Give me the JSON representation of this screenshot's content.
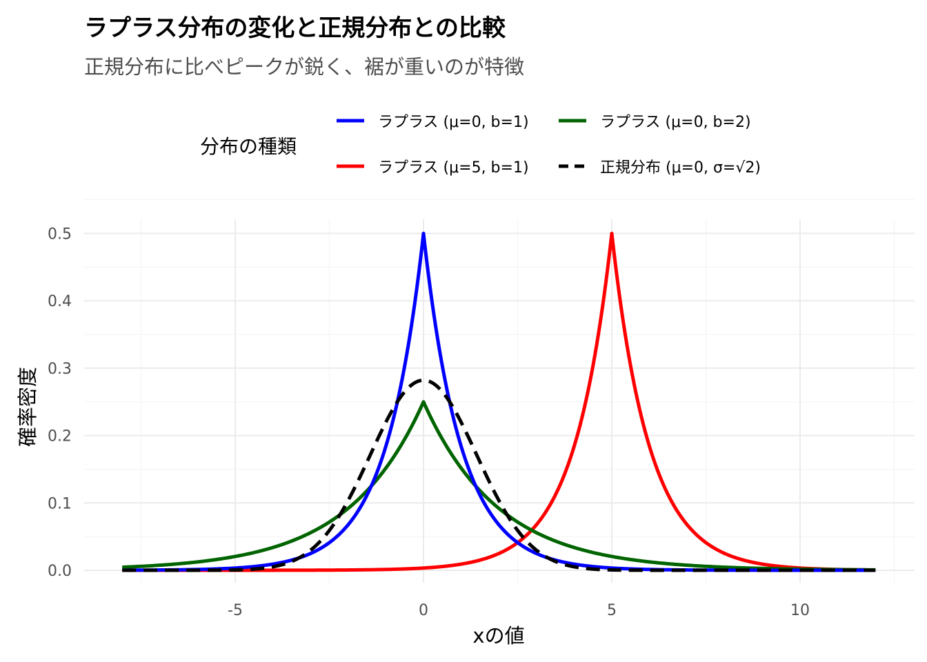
{
  "chart_data": {
    "type": "line",
    "title": "ラプラス分布の変化と正規分布との比較",
    "subtitle": "正規分布に比べピークが鋭く、裾が重いのが特徴",
    "xlabel": "xの値",
    "ylabel": "確率密度",
    "legend_title": "分布の種類",
    "legend_position": "top",
    "grid": true,
    "xlim": [
      -8,
      12
    ],
    "ylim": [
      0,
      0.5
    ],
    "x_ticks": [
      -5,
      0,
      5,
      10
    ],
    "x_tick_labels": [
      "-5",
      "0",
      "5",
      "10"
    ],
    "y_ticks": [
      0.0,
      0.1,
      0.2,
      0.3,
      0.4,
      0.5
    ],
    "y_tick_labels": [
      "0.0",
      "0.1",
      "0.2",
      "0.3",
      "0.4",
      "0.5"
    ],
    "x": [
      -8,
      -7,
      -6,
      -5,
      -4,
      -3,
      -2,
      -1.5,
      -1,
      -0.5,
      0,
      0.5,
      1,
      1.5,
      2,
      3,
      4,
      5,
      6,
      7,
      8,
      9,
      10,
      11,
      12
    ],
    "series": [
      {
        "name": "ラプラス (μ=0, b=1)",
        "color": "#0000ff",
        "dash": "solid",
        "values": [
          0.0002,
          0.0005,
          0.0012,
          0.0034,
          0.0092,
          0.0249,
          0.0677,
          0.1116,
          0.1839,
          0.3033,
          0.5,
          0.3033,
          0.1839,
          0.1116,
          0.0677,
          0.0249,
          0.0092,
          0.0034,
          0.0012,
          0.0005,
          0.0002,
          0.0001,
          0.0,
          0.0,
          0.0
        ]
      },
      {
        "name": "ラプラス (μ=0, b=2)",
        "color": "#006400",
        "dash": "solid",
        "values": [
          0.0046,
          0.0075,
          0.0124,
          0.0205,
          0.0338,
          0.0558,
          0.092,
          0.1181,
          0.1516,
          0.1947,
          0.25,
          0.1947,
          0.1516,
          0.1181,
          0.092,
          0.0558,
          0.0338,
          0.0205,
          0.0124,
          0.0075,
          0.0046,
          0.0028,
          0.0017,
          0.001,
          0.0006
        ]
      },
      {
        "name": "ラプラス (μ=5, b=1)",
        "color": "#ff0000",
        "dash": "solid",
        "values": [
          0.0,
          0.0,
          0.0,
          0.0,
          0.0001,
          0.0002,
          0.0005,
          0.0008,
          0.0012,
          0.002,
          0.0034,
          0.0055,
          0.0092,
          0.0151,
          0.0249,
          0.0677,
          0.1839,
          0.5,
          0.1839,
          0.0677,
          0.0249,
          0.0092,
          0.0034,
          0.0012,
          0.0005
        ]
      },
      {
        "name": "正規分布 (μ=0, σ=√2)",
        "color": "#000000",
        "dash": "dashed",
        "values": [
          0.0,
          0.0,
          0.0,
          0.0012,
          0.0051,
          0.0297,
          0.1038,
          0.1609,
          0.2197,
          0.265,
          0.2821,
          0.265,
          0.2197,
          0.1609,
          0.1038,
          0.0297,
          0.0051,
          0.0012,
          0.0,
          0.0,
          0.0,
          0.0,
          0.0,
          0.0,
          0.0
        ]
      }
    ]
  }
}
